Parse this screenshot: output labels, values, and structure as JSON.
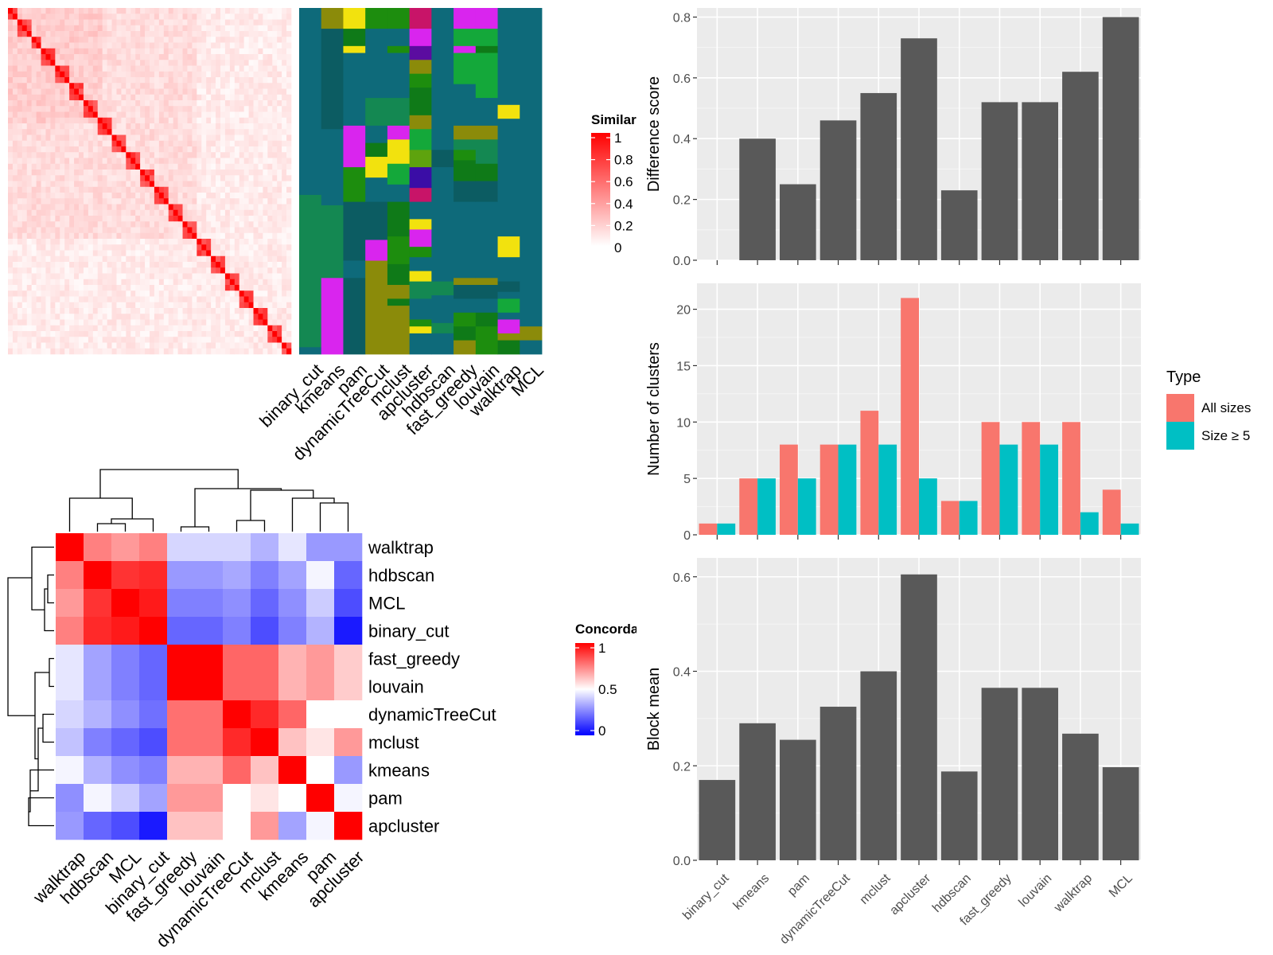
{
  "colors": {
    "panel_bg": "#EBEBEB",
    "grid": "#FFFFFF",
    "bar": "#595959",
    "all_sizes": "#F8766D",
    "size_ge5": "#00BFC4",
    "sim_high": "#FF0000",
    "sim_low": "#FFFFFF",
    "conc_high": "#FF0000",
    "conc_mid": "#FFFFFF",
    "conc_low": "#0000FF",
    "cluster_palette": [
      "#0E6A7A",
      "#0C5C62",
      "#148852",
      "#8B8B0A",
      "#F2E20E",
      "#1D8D0E",
      "#0F7A18",
      "#14A83A",
      "#D925EE",
      "#C81468",
      "#3A0DA6",
      "#5B0CA0",
      "#5EA30E"
    ]
  },
  "methods": [
    "binary_cut",
    "kmeans",
    "pam",
    "dynamicTreeCut",
    "mclust",
    "apcluster",
    "hdbscan",
    "fast_greedy",
    "louvain",
    "walktrap",
    "MCL"
  ],
  "similarity_heatmap": {
    "legend_title": "Similarity",
    "legend_ticks": [
      "1",
      "0.8",
      "0.6",
      "0.4",
      "0.2",
      "0"
    ],
    "n_terms": 60
  },
  "partition_columns": [
    [
      [
        0,
        0.54,
        0
      ],
      [
        0.54,
        0.98,
        2
      ],
      [
        0.98,
        1,
        0
      ]
    ],
    [
      [
        0,
        0.06,
        3
      ],
      [
        0.06,
        0.35,
        1
      ],
      [
        0.35,
        0.57,
        0
      ],
      [
        0.57,
        0.78,
        2
      ],
      [
        0.78,
        1,
        8
      ]
    ],
    [
      [
        0,
        0.06,
        4
      ],
      [
        0.06,
        0.11,
        6
      ],
      [
        0.11,
        0.13,
        4
      ],
      [
        0.13,
        0.34,
        0
      ],
      [
        0.34,
        0.46,
        8
      ],
      [
        0.46,
        0.56,
        5
      ],
      [
        0.56,
        0.73,
        1
      ],
      [
        0.73,
        0.78,
        0
      ],
      [
        0.78,
        0.82,
        1
      ],
      [
        0.82,
        1,
        1
      ]
    ],
    [
      [
        0,
        0.06,
        5
      ],
      [
        0.06,
        0.26,
        0
      ],
      [
        0.26,
        0.34,
        2
      ],
      [
        0.34,
        0.39,
        0
      ],
      [
        0.39,
        0.43,
        6
      ],
      [
        0.43,
        0.49,
        4
      ],
      [
        0.49,
        0.56,
        0
      ],
      [
        0.56,
        0.67,
        1
      ],
      [
        0.67,
        0.73,
        8
      ],
      [
        0.73,
        0.81,
        3
      ],
      [
        0.81,
        1,
        3
      ]
    ],
    [
      [
        0,
        0.06,
        5
      ],
      [
        0.06,
        0.11,
        0
      ],
      [
        0.11,
        0.13,
        5
      ],
      [
        0.13,
        0.26,
        0
      ],
      [
        0.26,
        0.34,
        2
      ],
      [
        0.34,
        0.38,
        8
      ],
      [
        0.38,
        0.45,
        4
      ],
      [
        0.45,
        0.51,
        7
      ],
      [
        0.51,
        0.56,
        0
      ],
      [
        0.56,
        0.66,
        6
      ],
      [
        0.66,
        0.74,
        5
      ],
      [
        0.74,
        0.8,
        6
      ],
      [
        0.8,
        0.84,
        3
      ],
      [
        0.84,
        0.86,
        6
      ],
      [
        0.86,
        1,
        3
      ]
    ],
    [
      [
        0,
        0.06,
        9
      ],
      [
        0.06,
        0.11,
        8
      ],
      [
        0.11,
        0.15,
        11
      ],
      [
        0.15,
        0.19,
        3
      ],
      [
        0.19,
        0.23,
        5
      ],
      [
        0.23,
        0.31,
        6
      ],
      [
        0.31,
        0.35,
        3
      ],
      [
        0.35,
        0.41,
        7
      ],
      [
        0.41,
        0.46,
        12
      ],
      [
        0.46,
        0.52,
        10
      ],
      [
        0.52,
        0.56,
        9
      ],
      [
        0.56,
        0.61,
        0
      ],
      [
        0.61,
        0.64,
        4
      ],
      [
        0.64,
        0.69,
        8
      ],
      [
        0.69,
        0.72,
        5
      ],
      [
        0.72,
        0.76,
        0
      ],
      [
        0.76,
        0.79,
        4
      ],
      [
        0.79,
        0.84,
        2
      ],
      [
        0.84,
        0.9,
        0
      ],
      [
        0.9,
        0.92,
        5
      ],
      [
        0.92,
        0.94,
        4
      ],
      [
        0.94,
        1,
        0
      ]
    ],
    [
      [
        0,
        0.41,
        0
      ],
      [
        0.41,
        0.46,
        1
      ],
      [
        0.46,
        0.79,
        0
      ],
      [
        0.79,
        0.83,
        2
      ],
      [
        0.83,
        0.91,
        0
      ],
      [
        0.91,
        0.94,
        2
      ],
      [
        0.94,
        1,
        0
      ]
    ],
    [
      [
        0,
        0.06,
        8
      ],
      [
        0.06,
        0.11,
        7
      ],
      [
        0.11,
        0.13,
        8
      ],
      [
        0.13,
        0.22,
        7
      ],
      [
        0.22,
        0.34,
        0
      ],
      [
        0.34,
        0.38,
        3
      ],
      [
        0.38,
        0.41,
        2
      ],
      [
        0.41,
        0.44,
        5
      ],
      [
        0.44,
        0.5,
        6
      ],
      [
        0.5,
        0.56,
        1
      ],
      [
        0.56,
        0.78,
        0
      ],
      [
        0.78,
        0.8,
        3
      ],
      [
        0.8,
        0.84,
        1
      ],
      [
        0.84,
        0.88,
        0
      ],
      [
        0.88,
        0.92,
        5
      ],
      [
        0.92,
        0.96,
        6
      ],
      [
        0.96,
        1,
        3
      ]
    ],
    [
      [
        0,
        0.06,
        8
      ],
      [
        0.06,
        0.11,
        7
      ],
      [
        0.11,
        0.13,
        6
      ],
      [
        0.13,
        0.26,
        7
      ],
      [
        0.26,
        0.34,
        0
      ],
      [
        0.34,
        0.38,
        3
      ],
      [
        0.38,
        0.45,
        2
      ],
      [
        0.45,
        0.5,
        6
      ],
      [
        0.5,
        0.56,
        1
      ],
      [
        0.56,
        0.78,
        0
      ],
      [
        0.78,
        0.8,
        3
      ],
      [
        0.8,
        0.84,
        1
      ],
      [
        0.84,
        0.88,
        0
      ],
      [
        0.88,
        0.92,
        6
      ],
      [
        0.92,
        1,
        5
      ]
    ],
    [
      [
        0,
        0.28,
        0
      ],
      [
        0.28,
        0.32,
        4
      ],
      [
        0.32,
        0.66,
        0
      ],
      [
        0.66,
        0.72,
        4
      ],
      [
        0.72,
        0.79,
        0
      ],
      [
        0.79,
        0.82,
        1
      ],
      [
        0.82,
        0.84,
        0
      ],
      [
        0.84,
        0.88,
        7
      ],
      [
        0.88,
        0.9,
        0
      ],
      [
        0.9,
        0.94,
        8
      ],
      [
        0.94,
        0.96,
        3
      ],
      [
        0.96,
        1,
        6
      ]
    ],
    [
      [
        0,
        0.92,
        0
      ],
      [
        0.92,
        0.96,
        3
      ],
      [
        0.96,
        1,
        0
      ]
    ]
  ],
  "concordance_heatmap": {
    "legend_title": "Concordance",
    "legend_ticks": [
      "1",
      "0.5",
      "0"
    ],
    "order": [
      "walktrap",
      "hdbscan",
      "MCL",
      "binary_cut",
      "fast_greedy",
      "louvain",
      "dynamicTreeCut",
      "mclust",
      "kmeans",
      "pam",
      "apcluster"
    ],
    "matrix": [
      [
        1.0,
        0.75,
        0.7,
        0.75,
        0.42,
        0.42,
        0.42,
        0.35,
        0.45,
        0.3,
        0.3
      ],
      [
        0.75,
        1.0,
        0.9,
        0.92,
        0.3,
        0.3,
        0.33,
        0.25,
        0.32,
        0.48,
        0.2
      ],
      [
        0.7,
        0.9,
        1.0,
        0.95,
        0.25,
        0.25,
        0.28,
        0.2,
        0.28,
        0.4,
        0.15
      ],
      [
        0.75,
        0.92,
        0.95,
        1.0,
        0.2,
        0.2,
        0.25,
        0.15,
        0.25,
        0.35,
        0.05
      ],
      [
        0.45,
        0.32,
        0.25,
        0.2,
        1.0,
        1.0,
        0.8,
        0.8,
        0.65,
        0.7,
        0.6
      ],
      [
        0.45,
        0.32,
        0.25,
        0.2,
        1.0,
        1.0,
        0.8,
        0.8,
        0.65,
        0.7,
        0.6
      ],
      [
        0.42,
        0.35,
        0.28,
        0.22,
        0.78,
        0.78,
        1.0,
        0.92,
        0.8,
        0.5,
        0.5
      ],
      [
        0.38,
        0.25,
        0.2,
        0.15,
        0.78,
        0.78,
        0.92,
        1.0,
        0.62,
        0.55,
        0.7
      ],
      [
        0.48,
        0.35,
        0.28,
        0.25,
        0.65,
        0.65,
        0.8,
        0.62,
        1.0,
        0.5,
        0.3
      ],
      [
        0.28,
        0.48,
        0.4,
        0.32,
        0.7,
        0.7,
        0.5,
        0.55,
        0.5,
        1.0,
        0.48
      ],
      [
        0.3,
        0.2,
        0.15,
        0.05,
        0.62,
        0.62,
        0.5,
        0.7,
        0.32,
        0.48,
        1.0
      ]
    ]
  },
  "chart_data": [
    {
      "type": "bar",
      "categories": [
        "binary_cut",
        "kmeans",
        "pam",
        "dynamicTreeCut",
        "mclust",
        "apcluster",
        "hdbscan",
        "fast_greedy",
        "louvain",
        "walktrap",
        "MCL"
      ],
      "values": [
        0.0,
        0.4,
        0.25,
        0.46,
        0.55,
        0.73,
        0.23,
        0.52,
        0.52,
        0.62,
        0.8
      ],
      "xlabel": "",
      "ylabel": "Difference score",
      "ylim": [
        0,
        0.83
      ],
      "yticks": [
        0.0,
        0.2,
        0.4,
        0.6,
        0.8
      ],
      "ytick_labels": [
        "0.0",
        "0.2",
        "0.4",
        "0.6",
        "0.8"
      ],
      "grid": true
    },
    {
      "type": "bar",
      "categories": [
        "binary_cut",
        "kmeans",
        "pam",
        "dynamicTreeCut",
        "mclust",
        "apcluster",
        "hdbscan",
        "fast_greedy",
        "louvain",
        "walktrap",
        "MCL"
      ],
      "series": [
        {
          "name": "All sizes",
          "values": [
            1,
            5,
            8,
            8,
            11,
            21,
            3,
            10,
            10,
            10,
            4
          ]
        },
        {
          "name": "Size ≥ 5",
          "values": [
            1,
            5,
            5,
            8,
            8,
            5,
            3,
            8,
            8,
            2,
            1
          ]
        }
      ],
      "xlabel": "",
      "ylabel": "Number of clusters",
      "ylim": [
        0,
        22.3
      ],
      "yticks": [
        0,
        5,
        10,
        15,
        20
      ],
      "ytick_labels": [
        "0",
        "5",
        "10",
        "15",
        "20"
      ],
      "legend_title": "Type",
      "legend_position": "right",
      "grid": true
    },
    {
      "type": "bar",
      "categories": [
        "binary_cut",
        "kmeans",
        "pam",
        "dynamicTreeCut",
        "mclust",
        "apcluster",
        "hdbscan",
        "fast_greedy",
        "louvain",
        "walktrap",
        "MCL"
      ],
      "values": [
        0.17,
        0.29,
        0.255,
        0.325,
        0.4,
        0.605,
        0.188,
        0.365,
        0.365,
        0.268,
        0.197
      ],
      "xlabel": "",
      "ylabel": "Block mean",
      "ylim": [
        0,
        0.64
      ],
      "yticks": [
        0.0,
        0.2,
        0.4,
        0.6
      ],
      "ytick_labels": [
        "0.0",
        "0.2",
        "0.4",
        "0.6"
      ],
      "grid": true
    }
  ]
}
